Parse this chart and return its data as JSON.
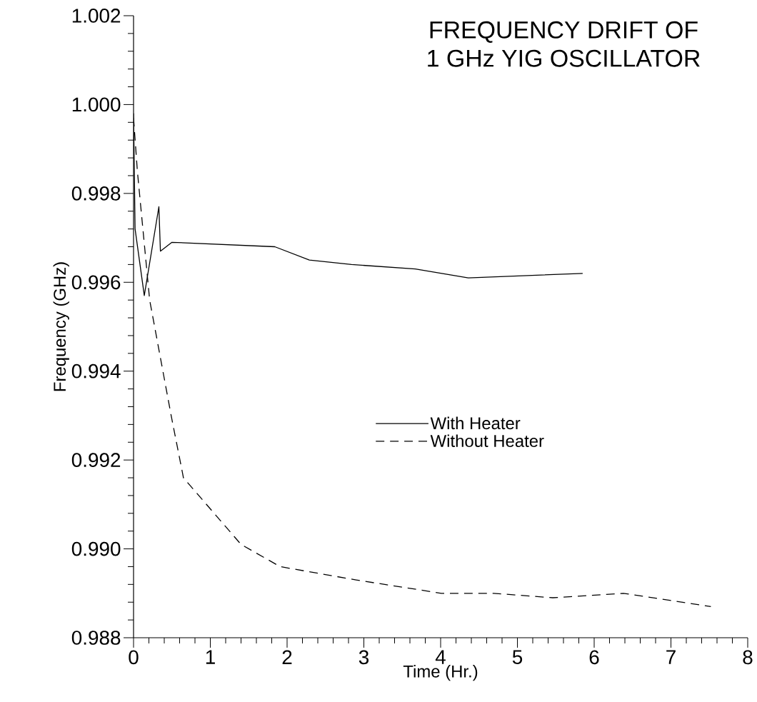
{
  "chart_data": {
    "type": "line",
    "title": "FREQUENCY DRIFT OF",
    "subtitle": "1 GHz YIG OSCILLATOR",
    "xlabel": "Time (Hr.)",
    "ylabel": "Frequency (GHz)",
    "series": [
      {
        "name": "With Heater",
        "color": "#000000",
        "line_style": "solid",
        "x": [
          0,
          0.02,
          0.14,
          0.33,
          0.35,
          0.5,
          1.84,
          2.29,
          2.84,
          3.67,
          4.36,
          5.85
        ],
        "values": [
          0.9998,
          0.9972,
          0.9957,
          0.9977,
          0.9967,
          0.9969,
          0.9968,
          0.9965,
          0.9964,
          0.9963,
          0.9961,
          0.9962
        ]
      },
      {
        "name": "Without Heater",
        "color": "#000000",
        "line_style": "dashed",
        "x": [
          0,
          0.05,
          0.21,
          0.49,
          0.65,
          1.4,
          1.91,
          2.9,
          4.01,
          4.69,
          5.46,
          6.38,
          7.52
        ],
        "values": [
          0.9997,
          0.9985,
          0.9956,
          0.993,
          0.9916,
          0.9901,
          0.9896,
          0.9893,
          0.989,
          0.989,
          0.9889,
          0.989,
          0.9887
        ]
      }
    ],
    "xlim": [
      0,
      8
    ],
    "ylim": [
      0.988,
      1.002
    ],
    "xticks": [
      0,
      1,
      2,
      3,
      4,
      5,
      6,
      7,
      8
    ],
    "yticks": [
      {
        "value": 0.988,
        "label": "0.988"
      },
      {
        "value": 0.99,
        "label": "0.990"
      },
      {
        "value": 0.992,
        "label": "0.992"
      },
      {
        "value": 0.994,
        "label": "0.994"
      },
      {
        "value": 0.996,
        "label": "0.996"
      },
      {
        "value": 0.998,
        "label": "0.998"
      },
      {
        "value": 1.0,
        "label": "1.000"
      },
      {
        "value": 1.002,
        "label": "1.002"
      }
    ],
    "legend": "right",
    "grid": false,
    "marker": "none"
  }
}
